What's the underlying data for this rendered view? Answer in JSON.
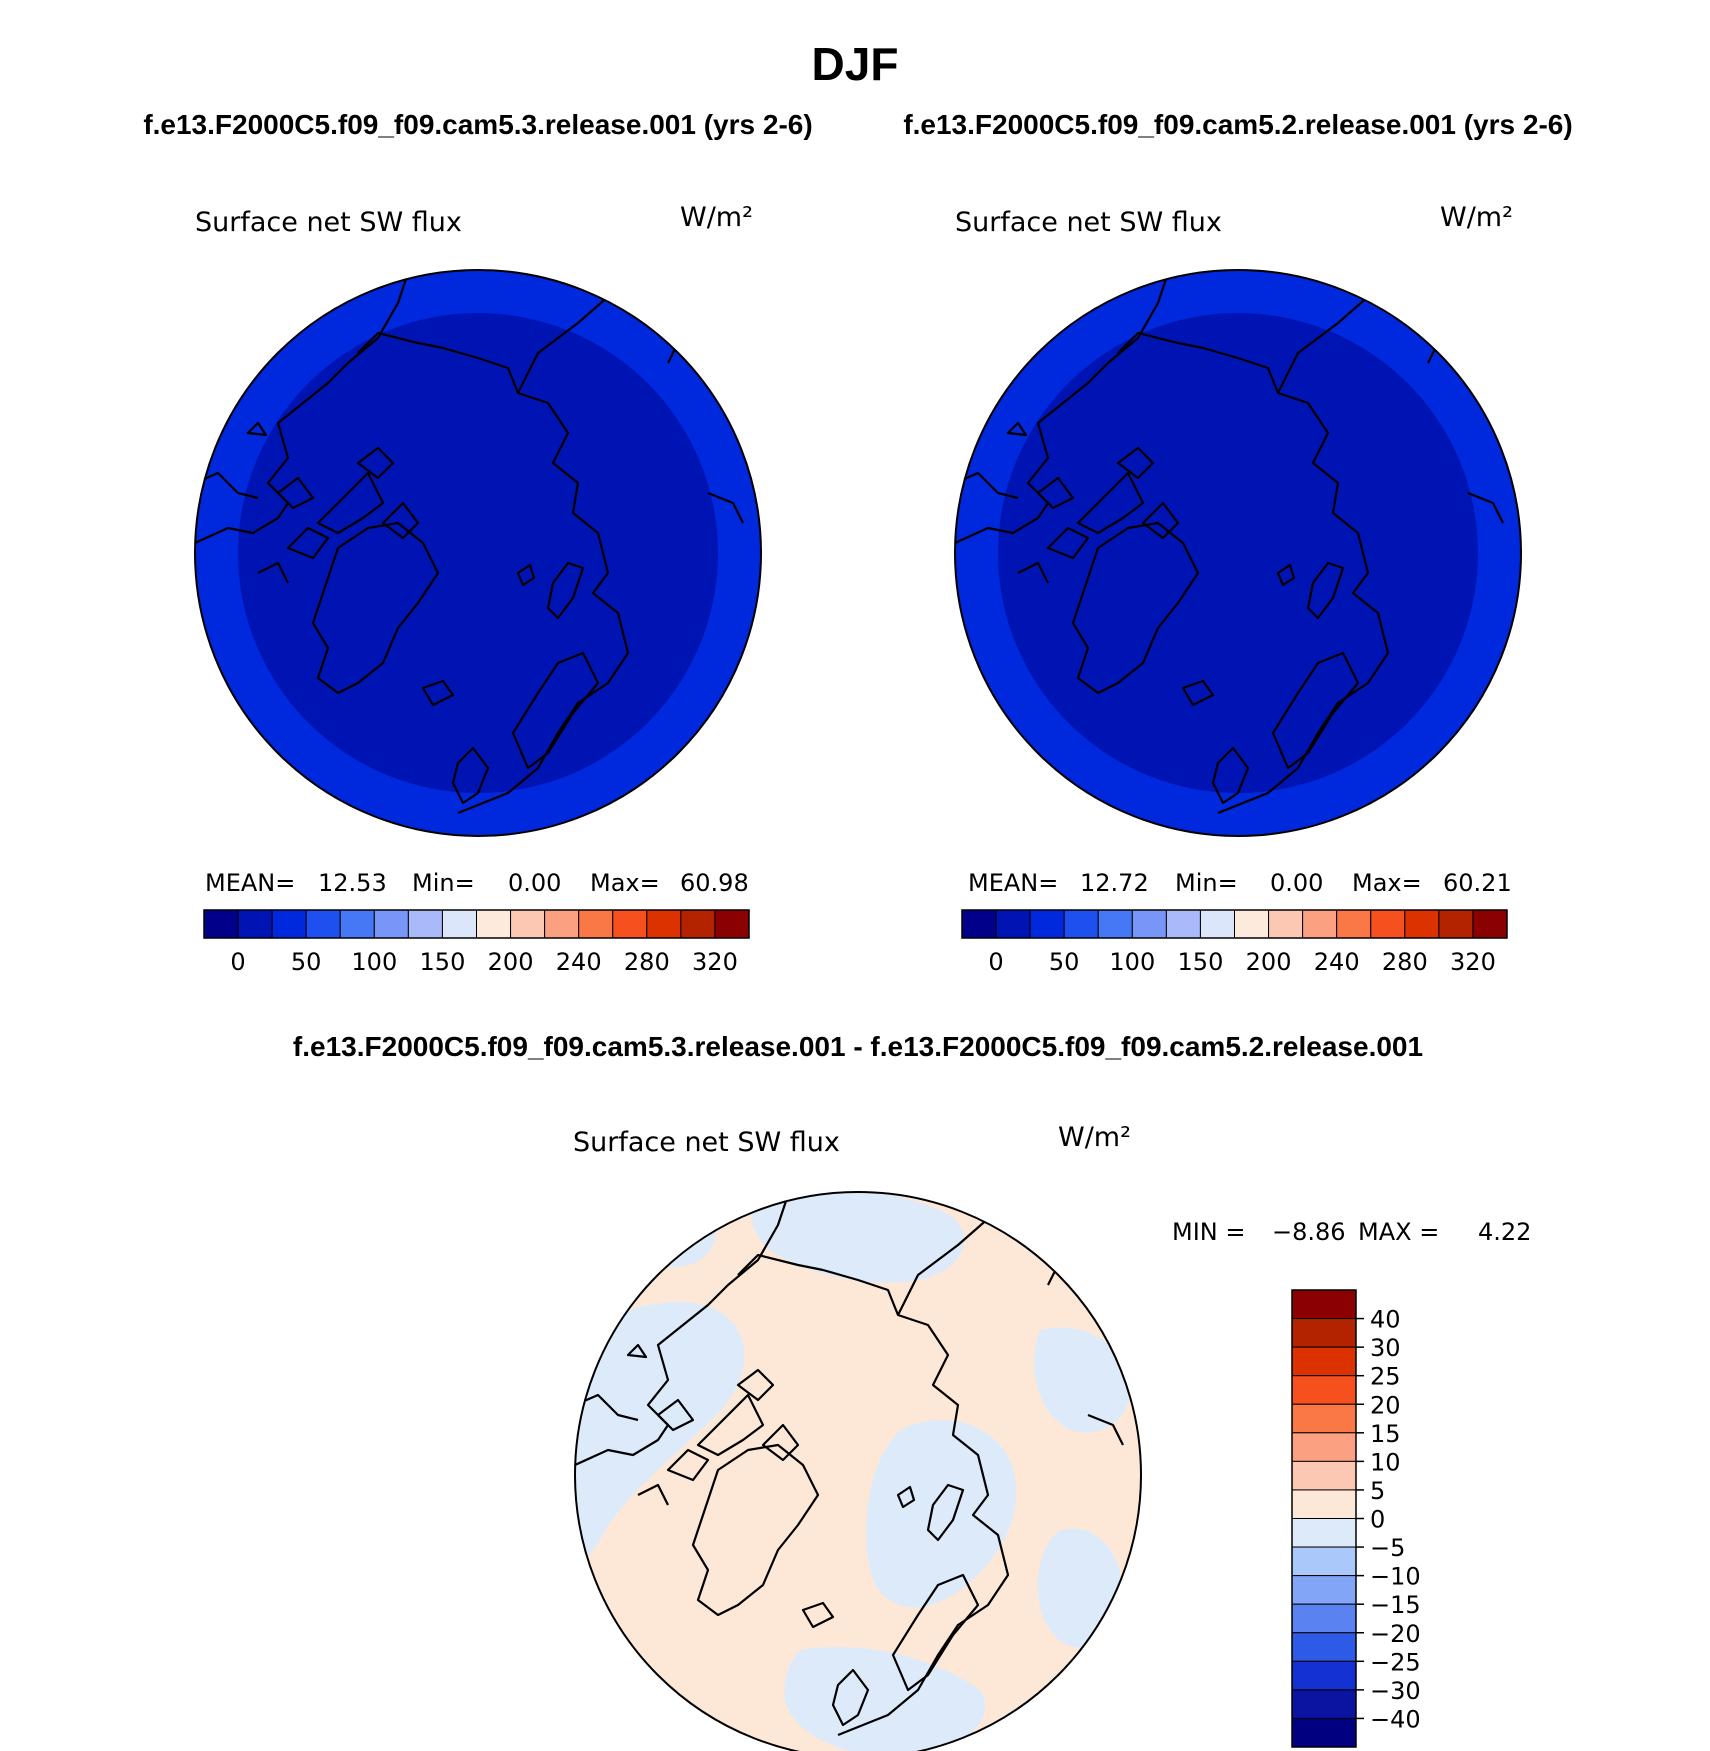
{
  "page": {
    "season": "DJF",
    "subtitle_left": "f.e13.F2000C5.f09_f09.cam5.3.release.001 (yrs 2-6)",
    "subtitle_right": "f.e13.F2000C5.f09_f09.cam5.2.release.001 (yrs 2-6)",
    "diff_title": "f.e13.F2000C5.f09_f09.cam5.3.release.001 - f.e13.F2000C5.f09_f09.cam5.2.release.001"
  },
  "colors": {
    "abs_scale": [
      "#00008b",
      "#0014b4",
      "#0028dc",
      "#1e50f0",
      "#4678f5",
      "#7896f8",
      "#aab9fa",
      "#dce6fa",
      "#fdeadc",
      "#fcc8b4",
      "#fca082",
      "#fa7846",
      "#f5501e",
      "#dc3200",
      "#b42300",
      "#8b0000"
    ],
    "diff_scale": [
      "#8b0000",
      "#b42300",
      "#dc3200",
      "#f5501e",
      "#fa7846",
      "#fca082",
      "#fcc8b4",
      "#fde8d8",
      "#dceafa",
      "#aac8fa",
      "#82a5f8",
      "#5a82f0",
      "#2d5ae6",
      "#1432d2",
      "#0a14a0",
      "#000080"
    ],
    "land_outline": "#000000"
  },
  "chart_data": [
    {
      "type": "heatmap",
      "projection": "north polar stereographic",
      "title": "Surface net SW flux",
      "units": "W/m²",
      "mean": "12.53",
      "min": "0.00",
      "max": "60.98",
      "stats": {
        "mean_label": "MEAN=",
        "min_label": "Min=",
        "max_label": "Max="
      },
      "colorbar_ticks": [
        "0",
        "50",
        "100",
        "150",
        "200",
        "240",
        "280",
        "320"
      ],
      "dominant_value_range": [
        0,
        50
      ]
    },
    {
      "type": "heatmap",
      "projection": "north polar stereographic",
      "title": "Surface net SW flux",
      "units": "W/m²",
      "mean": "12.72",
      "min": "0.00",
      "max": "60.21",
      "stats": {
        "mean_label": "MEAN=",
        "min_label": "Min=",
        "max_label": "Max="
      },
      "colorbar_ticks": [
        "0",
        "50",
        "100",
        "150",
        "200",
        "240",
        "280",
        "320"
      ],
      "dominant_value_range": [
        0,
        50
      ]
    },
    {
      "type": "heatmap",
      "projection": "north polar stereographic",
      "title": "Surface net SW flux",
      "units": "W/m²",
      "min_label": "MIN =",
      "min": "−8.86",
      "max_label": "MAX =",
      "max": "4.22",
      "colorbar_ticks": [
        "40",
        "30",
        "25",
        "20",
        "15",
        "10",
        "5",
        "0",
        "−5",
        "−10",
        "−15",
        "−20",
        "−25",
        "−30",
        "−40"
      ],
      "dominant_value_range": [
        -5,
        5
      ]
    }
  ]
}
